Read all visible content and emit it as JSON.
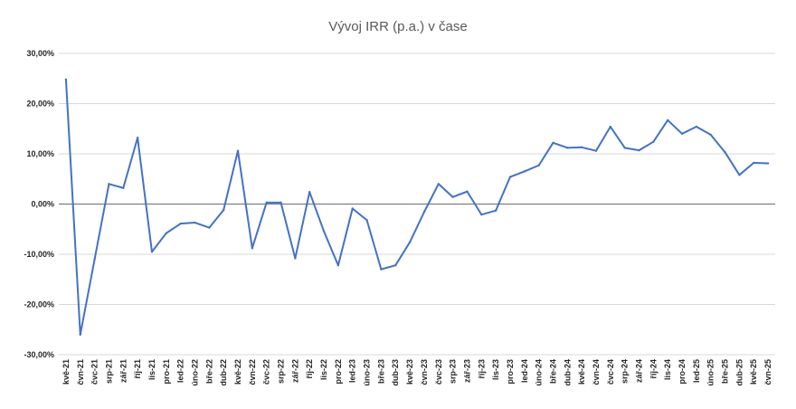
{
  "chart_data": {
    "type": "line",
    "title": "Vývoj IRR (p.a.) v čase",
    "xlabel": "",
    "ylabel": "",
    "ylim": [
      -30,
      30
    ],
    "yticks": [
      30,
      20,
      10,
      0,
      -10,
      -20,
      -30
    ],
    "ytick_labels": [
      "30,00%",
      "20,00%",
      "10,00%",
      "0,00%",
      "-10,00%",
      "-20,00%",
      "-30,00%"
    ],
    "grid": true,
    "legend": "none",
    "line_color": "#4472C4",
    "grid_color": "#d9d9d9",
    "zero_line_color": "#7f7f7f",
    "categories": [
      "kvě-21",
      "čvn-21",
      "čvc-21",
      "srp-21",
      "zář-21",
      "říj-21",
      "lis-21",
      "pro-21",
      "led-22",
      "úno-22",
      "bře-22",
      "dub-22",
      "kvě-22",
      "čvn-22",
      "čvc-22",
      "srp-22",
      "zář-22",
      "říj-22",
      "lis-22",
      "pro-22",
      "led-23",
      "úno-23",
      "bře-23",
      "dub-23",
      "kvě-23",
      "čvn-23",
      "čvc-23",
      "srp-23",
      "zář-23",
      "říj-23",
      "lis-23",
      "pro-23",
      "led-24",
      "úno-24",
      "bře-24",
      "dub-24",
      "kvě-24",
      "čvn-24",
      "čvc-24",
      "srp-24",
      "zář-24",
      "říj-24",
      "lis-24",
      "pro-24",
      "led-25",
      "úno-25",
      "bře-25",
      "dub-25",
      "kvě-25",
      "čvn-25"
    ],
    "series": [
      {
        "values": [
          24.8,
          -26.0,
          -11.0,
          4.0,
          3.2,
          13.2,
          -9.5,
          -5.8,
          -3.9,
          -3.7,
          -4.7,
          -1.2,
          10.6,
          -8.8,
          0.3,
          0.3,
          -10.8,
          2.4,
          -5.4,
          -12.2,
          -0.9,
          -3.2,
          -13.0,
          -12.2,
          -7.6,
          -1.6,
          4.0,
          1.4,
          2.5,
          -2.1,
          -1.3,
          5.4,
          6.5,
          7.7,
          12.2,
          11.2,
          11.3,
          10.6,
          15.4,
          11.2,
          10.7,
          12.4,
          16.7,
          14.0,
          15.4,
          13.8,
          10.3,
          5.8,
          8.2,
          8.1
        ]
      }
    ]
  }
}
